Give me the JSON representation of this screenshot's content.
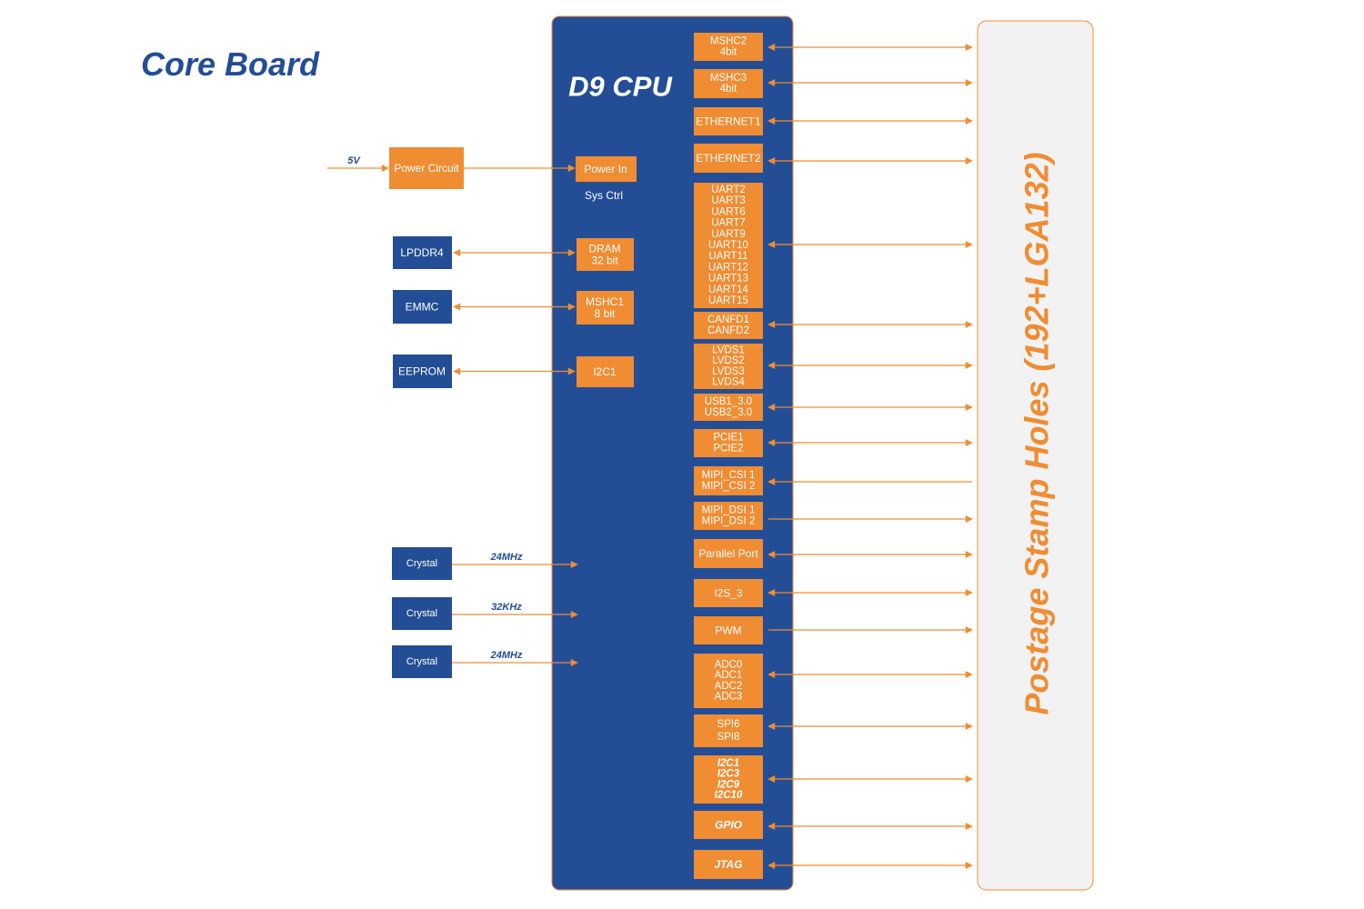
{
  "title": "Core Board",
  "colors": {
    "blue": "#234e96",
    "orange": "#f08c32",
    "panel": "#f2f2f2"
  },
  "cpu": {
    "label": "D9 CPU",
    "sys_ctrl_label": "Sys Ctrl"
  },
  "postage": {
    "label": "Postage Stamp Holes (192+LGA132)"
  },
  "power": {
    "input_label": "5V",
    "circuit": "Power Circuit",
    "power_in": "Power In"
  },
  "left_peripherals": [
    {
      "external": "LPDDR4",
      "internal": [
        "DRAM",
        "32 bit"
      ],
      "direction": "both"
    },
    {
      "external": "EMMC",
      "internal": [
        "MSHC1",
        "8 bit"
      ],
      "direction": "both"
    },
    {
      "external": "EEPROM",
      "internal": [
        "I2C1"
      ],
      "direction": "both"
    }
  ],
  "crystals": [
    {
      "label": "Crystal",
      "freq": "24MHz"
    },
    {
      "label": "Crystal",
      "freq": "32KHz"
    },
    {
      "label": "Crystal",
      "freq": "24MHz"
    }
  ],
  "interfaces": [
    {
      "lines": [
        "MSHC2",
        "4bit"
      ],
      "direction": "both",
      "italic": false
    },
    {
      "lines": [
        "MSHC3",
        "4bit"
      ],
      "direction": "both",
      "italic": false
    },
    {
      "lines": [
        "ETHERNET1"
      ],
      "direction": "both",
      "italic": false
    },
    {
      "lines": [
        "ETHERNET2"
      ],
      "direction": "both",
      "italic": false
    },
    {
      "lines": [
        "UART2",
        "UART3",
        "UART6",
        "UART7",
        "UART9",
        "UART10",
        "UART11",
        "UART12",
        "UART13",
        "UART14",
        "UART15"
      ],
      "direction": "both",
      "italic": false
    },
    {
      "lines": [
        "CANFD1",
        "CANFD2"
      ],
      "direction": "both",
      "italic": false
    },
    {
      "lines": [
        "LVDS1",
        "LVDS2",
        "LVDS3",
        "LVDS4"
      ],
      "direction": "both",
      "italic": false
    },
    {
      "lines": [
        "USB1_3.0",
        "USB2_3.0"
      ],
      "direction": "both",
      "italic": false
    },
    {
      "lines": [
        "PCIE1",
        "PCIE2"
      ],
      "direction": "both",
      "italic": false
    },
    {
      "lines": [
        "MIPI_CSI 1",
        "MIPI_CSI 2"
      ],
      "direction": "in",
      "italic": false
    },
    {
      "lines": [
        "MIPI_DSI 1",
        "MIPI_DSI 2"
      ],
      "direction": "out",
      "italic": false
    },
    {
      "lines": [
        "Parallel Port"
      ],
      "direction": "both",
      "italic": false
    },
    {
      "lines": [
        "I2S_3"
      ],
      "direction": "both",
      "italic": false
    },
    {
      "lines": [
        "PWM"
      ],
      "direction": "out",
      "italic": false
    },
    {
      "lines": [
        "ADC0",
        "ADC1",
        "ADC2",
        "ADC3"
      ],
      "direction": "both",
      "italic": false
    },
    {
      "lines": [
        "SPI6",
        "SPI8"
      ],
      "direction": "both",
      "italic": false
    },
    {
      "lines": [
        "I2C1",
        "I2C3",
        "I2C9",
        "I2C10"
      ],
      "direction": "both",
      "italic": true
    },
    {
      "lines": [
        "GPIO"
      ],
      "direction": "both",
      "italic": true
    },
    {
      "lines": [
        "JTAG"
      ],
      "direction": "both",
      "italic": true
    }
  ]
}
